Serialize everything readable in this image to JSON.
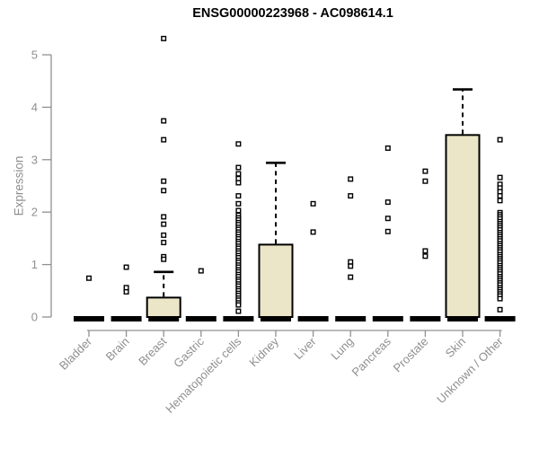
{
  "colors": {
    "box_fill": "#ECE6C9",
    "data_stroke": "#000000",
    "outlier_fill": "#FFFFFF",
    "axis": "#909090",
    "tick_label": "#8F8F8F",
    "title": "#000000",
    "background": "#FFFFFF"
  },
  "chart_data": {
    "type": "boxplot",
    "title": "ENSG00000223968 - AC098614.1",
    "ylabel": "Expression",
    "xlabel": "",
    "ylim": [
      0,
      5
    ],
    "yticks": [
      0,
      1,
      2,
      3,
      4,
      5
    ],
    "grid": false,
    "legend": "none",
    "categories": [
      "Bladder",
      "Brain",
      "Breast",
      "Gastric",
      "Hematopoietic cells",
      "Kidney",
      "Liver",
      "Lung",
      "Pancreas",
      "Prostate",
      "Skin",
      "Unknown / Other"
    ],
    "series": [
      {
        "name": "Bladder",
        "whisker_low": 0,
        "q1": 0,
        "median": 0,
        "q3": 0,
        "whisker_high": 0,
        "outliers": [
          0.74
        ]
      },
      {
        "name": "Brain",
        "whisker_low": 0,
        "q1": 0,
        "median": 0,
        "q3": 0,
        "whisker_high": 0,
        "outliers": [
          0.95,
          0.56,
          0.48
        ]
      },
      {
        "name": "Breast",
        "whisker_low": 0,
        "q1": 0,
        "median": 0,
        "q3": 0.37,
        "whisker_high": 0.86,
        "outliers": [
          5.31,
          3.74,
          3.38,
          2.59,
          2.41,
          1.91,
          1.77,
          1.56,
          1.42,
          1.15,
          1.1
        ]
      },
      {
        "name": "Gastric",
        "whisker_low": 0,
        "q1": 0,
        "median": 0,
        "q3": 0,
        "whisker_high": 0,
        "outliers": [
          0.88
        ]
      },
      {
        "name": "Hematopoietic cells",
        "whisker_low": 0,
        "q1": 0,
        "median": 0,
        "q3": 0,
        "whisker_high": 0,
        "outliers": [
          3.3,
          2.85,
          2.73,
          2.64,
          2.56,
          2.31,
          2.16,
          2.03,
          1.94,
          1.89,
          1.85,
          1.8,
          1.76,
          1.71,
          1.67,
          1.62,
          1.58,
          1.53,
          1.49,
          1.44,
          1.4,
          1.35,
          1.31,
          1.26,
          1.22,
          1.17,
          1.13,
          1.08,
          1.04,
          0.99,
          0.95,
          0.9,
          0.86,
          0.81,
          0.77,
          0.72,
          0.68,
          0.63,
          0.59,
          0.54,
          0.5,
          0.45,
          0.41,
          0.36,
          0.32,
          0.27,
          0.23,
          0.11
        ]
      },
      {
        "name": "Kidney",
        "whisker_low": 0,
        "q1": 0,
        "median": 0,
        "q3": 1.38,
        "whisker_high": 2.94,
        "outliers": []
      },
      {
        "name": "Liver",
        "whisker_low": 0,
        "q1": 0,
        "median": 0,
        "q3": 0,
        "whisker_high": 0,
        "outliers": [
          2.16,
          1.62
        ]
      },
      {
        "name": "Lung",
        "whisker_low": 0,
        "q1": 0,
        "median": 0,
        "q3": 0,
        "whisker_high": 0,
        "outliers": [
          2.63,
          2.31,
          1.05,
          0.97,
          0.76
        ]
      },
      {
        "name": "Pancreas",
        "whisker_low": 0,
        "q1": 0,
        "median": 0,
        "q3": 0,
        "whisker_high": 0,
        "outliers": [
          3.22,
          2.19,
          1.88,
          1.63
        ]
      },
      {
        "name": "Prostate",
        "whisker_low": 0,
        "q1": 0,
        "median": 0,
        "q3": 0,
        "whisker_high": 0,
        "outliers": [
          2.78,
          2.59,
          1.26,
          1.16
        ]
      },
      {
        "name": "Skin",
        "whisker_low": 0,
        "q1": 0,
        "median": 0,
        "q3": 3.47,
        "whisker_high": 4.34,
        "outliers": []
      },
      {
        "name": "Unknown / Other",
        "whisker_low": 0,
        "q1": 0,
        "median": 0,
        "q3": 0,
        "whisker_high": 0,
        "outliers": [
          3.38,
          2.66,
          2.53,
          2.46,
          2.39,
          2.31,
          2.22,
          1.99,
          1.95,
          1.91,
          1.87,
          1.82,
          1.78,
          1.74,
          1.7,
          1.66,
          1.61,
          1.57,
          1.53,
          1.49,
          1.45,
          1.4,
          1.36,
          1.32,
          1.28,
          1.24,
          1.19,
          1.15,
          1.11,
          1.07,
          1.03,
          0.98,
          0.94,
          0.9,
          0.86,
          0.82,
          0.77,
          0.73,
          0.69,
          0.65,
          0.61,
          0.56,
          0.52,
          0.48,
          0.44,
          0.4,
          0.35,
          0.14
        ]
      }
    ]
  }
}
